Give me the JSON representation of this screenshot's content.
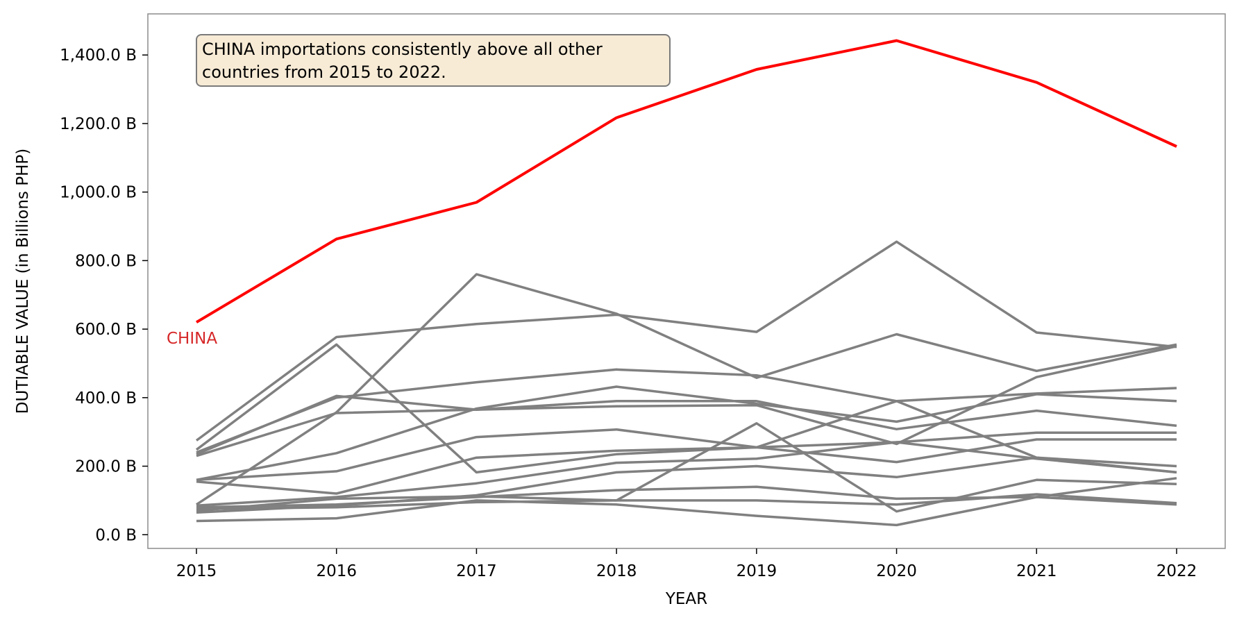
{
  "chart_data": {
    "type": "line",
    "title": "",
    "xlabel": "YEAR",
    "ylabel": "DUTIABLE VALUE (in Billions PHP)",
    "x": [
      2015,
      2016,
      2017,
      2018,
      2019,
      2020,
      2021,
      2022
    ],
    "x_tick_labels": [
      "2015",
      "2016",
      "2017",
      "2018",
      "2019",
      "2020",
      "2021",
      "2022"
    ],
    "ylim": [
      -40,
      1520
    ],
    "y_ticks": [
      0,
      200,
      400,
      600,
      800,
      1000,
      1200,
      1400
    ],
    "y_tick_labels": [
      "0.0 B",
      "200.0 B",
      "400.0 B",
      "600.0 B",
      "800.0 B",
      "1,000.0 B",
      "1,200.0 B",
      "1,400.0 B"
    ],
    "grid": false,
    "highlight_color": "#ff0000",
    "other_color": "#808080",
    "highlight_label_color": "#d62728",
    "highlight": {
      "label": "CHINA",
      "values": [
        620,
        863,
        970,
        1217,
        1358,
        1442,
        1320,
        1133
      ]
    },
    "others": [
      {
        "values": [
          275,
          577,
          615,
          642,
          592,
          855,
          590,
          548
        ]
      },
      {
        "values": [
          88,
          357,
          760,
          645,
          458,
          585,
          478,
          555
        ]
      },
      {
        "values": [
          248,
          555,
          182,
          235,
          255,
          390,
          412,
          428
        ]
      },
      {
        "values": [
          240,
          400,
          445,
          482,
          465,
          390,
          225,
          200
        ]
      },
      {
        "values": [
          160,
          238,
          368,
          432,
          382,
          330,
          410,
          390
        ]
      },
      {
        "values": [
          235,
          405,
          365,
          375,
          378,
          265,
          460,
          550
        ]
      },
      {
        "values": [
          230,
          355,
          365,
          390,
          390,
          308,
          362,
          318
        ]
      },
      {
        "values": [
          160,
          185,
          285,
          307,
          255,
          270,
          298,
          298
        ]
      },
      {
        "values": [
          155,
          120,
          225,
          245,
          255,
          212,
          278,
          278
        ]
      },
      {
        "values": [
          85,
          110,
          150,
          210,
          222,
          270,
          222,
          182
        ]
      },
      {
        "values": [
          70,
          105,
          112,
          100,
          325,
          68,
          160,
          148
        ]
      },
      {
        "values": [
          65,
          85,
          115,
          182,
          200,
          168,
          225,
          182
        ]
      },
      {
        "values": [
          80,
          88,
          110,
          130,
          140,
          105,
          110,
          88
        ]
      },
      {
        "values": [
          75,
          80,
          95,
          100,
          100,
          88,
          118,
          92
        ]
      },
      {
        "values": [
          40,
          48,
          100,
          88,
          55,
          28,
          110,
          165
        ]
      }
    ],
    "annotation": {
      "lines": [
        "CHINA importations consistently above all other",
        "countries from 2015 to 2022."
      ],
      "background": "#f7ebd6",
      "border": "#7a7a7a"
    }
  }
}
